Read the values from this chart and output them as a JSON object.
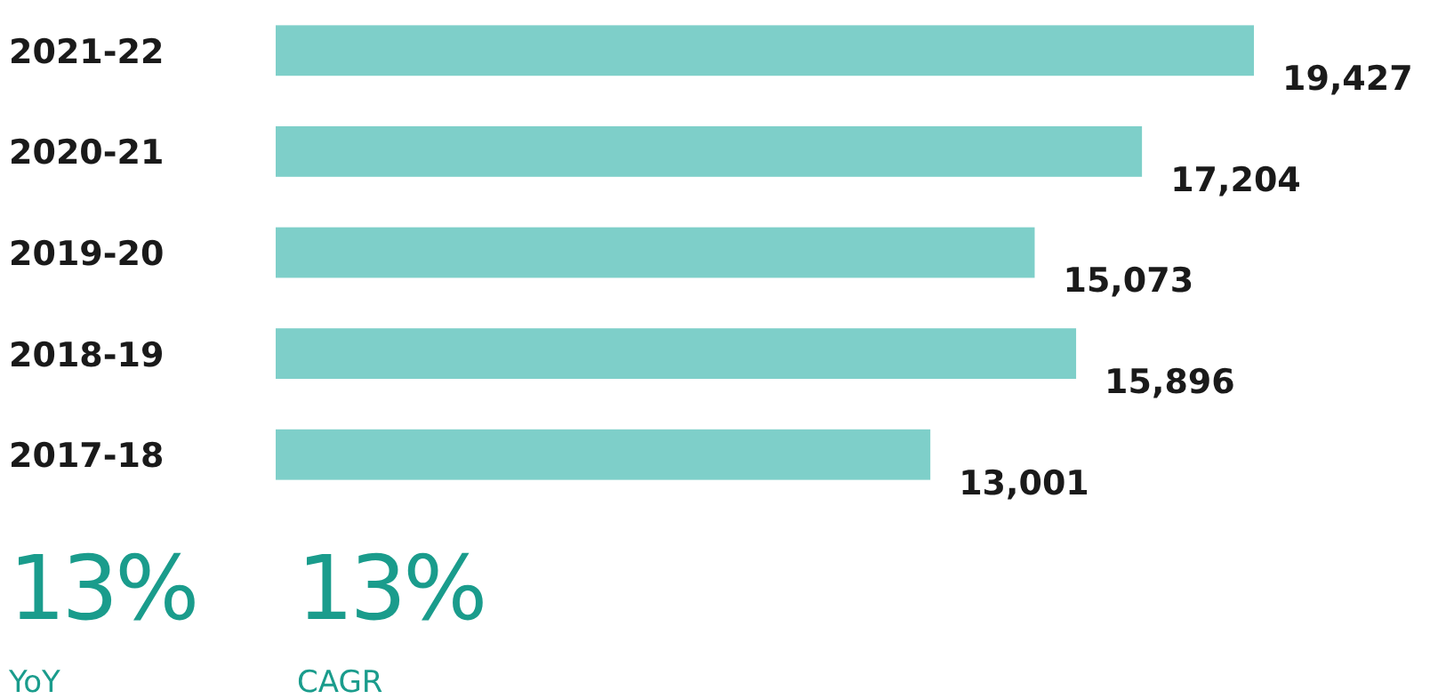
{
  "chart_data": {
    "type": "bar",
    "orientation": "horizontal",
    "categories": [
      "2021-22",
      "2020-21",
      "2019-20",
      "2018-19",
      "2017-18"
    ],
    "values": [
      19427,
      17204,
      15073,
      15896,
      13001
    ],
    "value_labels": [
      "19,427",
      "17,204",
      "15,073",
      "15,896",
      "13,001"
    ],
    "color": "#7ecfc9",
    "annotations": [
      "13%",
      "YoY",
      "13%",
      "CAGR"
    ]
  }
}
